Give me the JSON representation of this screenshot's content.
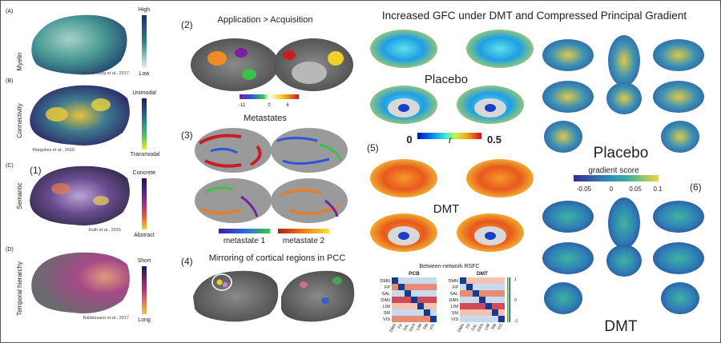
{
  "left": {
    "panels": [
      {
        "letter": "(A)",
        "label": "Myelin",
        "scale_top": "High",
        "scale_bottom": "Low",
        "citation": "Huntenburg et al., 2017"
      },
      {
        "letter": "(B)",
        "label": "Connectivity",
        "scale_top": "Unimodal",
        "scale_bottom": "Transmodal",
        "citation": "Margulies et al., 2016"
      },
      {
        "letter": "(C)",
        "label": "Semantic",
        "scale_top": "Concrete",
        "scale_bottom": "Abstract",
        "citation": "Huth et al., 2016",
        "number": "(1)"
      },
      {
        "letter": "(D)",
        "label": "Temporal hierarchy",
        "scale_top": "Short",
        "scale_bottom": "Long",
        "citation": "Baldassano et al., 2017"
      }
    ]
  },
  "middle": {
    "p2": {
      "number": "(2)",
      "title": "Application > Acquisition",
      "ticks": [
        "-11",
        "0",
        "6"
      ]
    },
    "p3": {
      "number": "(3)",
      "title": "Metastates",
      "legend1": "metastate 1",
      "legend2": "metastate 2"
    },
    "p4": {
      "number": "(4)",
      "title": "Mirroring of cortical regions in PCC"
    }
  },
  "right": {
    "title": "Increased GFC under DMT and Compressed Principal Gradient",
    "p5": {
      "number": "(5)",
      "placebo": "Placebo",
      "dmt": "DMT",
      "scale_min": "0",
      "scale_symbol": "r",
      "scale_max": "0.5",
      "matrix": {
        "title": "Between-network RSFC",
        "left_title": "PCB",
        "right_title": "DMT",
        "networks": [
          "DMN",
          "FP",
          "SAL",
          "DAN",
          "LIM",
          "SM",
          "VIS"
        ],
        "colorbar_ticks": [
          "1",
          "0",
          "-1"
        ]
      }
    },
    "p6": {
      "number": "(6)",
      "placebo": "Placebo",
      "dmt": "DMT",
      "scale_title": "gradient score",
      "ticks": [
        "-0.05",
        "0",
        "0.05",
        "0.1"
      ]
    }
  },
  "colors": {
    "teal": "#2c7f86",
    "navy": "#1f2d6b",
    "yellow": "#f2c132",
    "purple": "#5d2d91",
    "orange": "#f08a24",
    "red": "#c8202b",
    "blue": "#1740c9"
  }
}
